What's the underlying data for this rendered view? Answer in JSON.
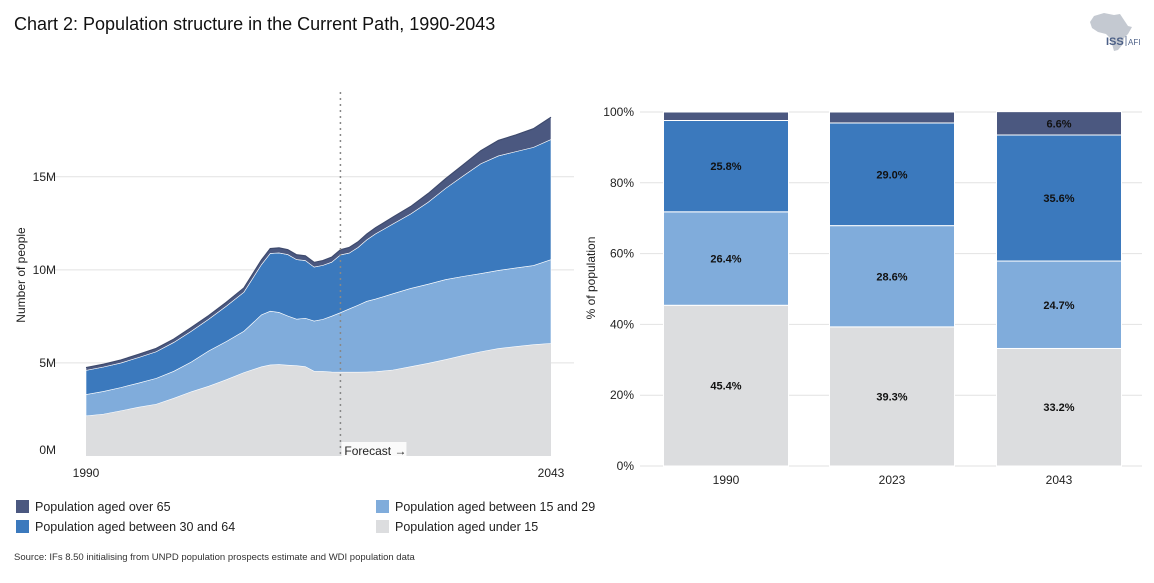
{
  "title": "Chart 2: Population structure in the Current Path, 1990-2043",
  "logo": {
    "main": "ISS",
    "sub": "AFI"
  },
  "colors": {
    "over65": "#4b5880",
    "age30to64": "#3b79bd",
    "age15to29": "#80acdb",
    "under15": "#dcdddf"
  },
  "chart_data": [
    {
      "type": "area",
      "stacked": true,
      "title": "",
      "xlabel": "",
      "ylabel": "Number of people",
      "x": [
        1990,
        1992,
        1994,
        1996,
        1998,
        2000,
        2002,
        2004,
        2006,
        2008,
        2010,
        2011,
        2012,
        2013,
        2014,
        2015,
        2016,
        2017,
        2018,
        2019,
        2020,
        2021,
        2022,
        2023,
        2025,
        2027,
        2029,
        2031,
        2033,
        2035,
        2037,
        2039,
        2041,
        2043
      ],
      "x_tick_labels": [
        "1990",
        "2043"
      ],
      "y_tick_labels": [
        "0M",
        "5M",
        "10M",
        "15M"
      ],
      "ylim": [
        0,
        19500000
      ],
      "annotation": {
        "label": "Forecast",
        "arrow": "→",
        "x": 2019
      },
      "series": [
        {
          "name": "Population aged under 15",
          "key": "under15",
          "values": [
            2150000,
            2250000,
            2430000,
            2620000,
            2780000,
            3100000,
            3450000,
            3750000,
            4100000,
            4480000,
            4790000,
            4890000,
            4910000,
            4880000,
            4850000,
            4800000,
            4550000,
            4540000,
            4510000,
            4500000,
            4500000,
            4500000,
            4510000,
            4530000,
            4620000,
            4800000,
            4980000,
            5180000,
            5400000,
            5600000,
            5770000,
            5880000,
            5980000,
            6050000
          ]
        },
        {
          "name": "Population aged between 15 and 29",
          "key": "age15to29",
          "values": [
            1150000,
            1220000,
            1250000,
            1300000,
            1390000,
            1450000,
            1600000,
            1900000,
            2050000,
            2220000,
            2790000,
            2890000,
            2800000,
            2640000,
            2500000,
            2600000,
            2700000,
            2800000,
            3000000,
            3200000,
            3400000,
            3600000,
            3800000,
            3900000,
            4100000,
            4200000,
            4250000,
            4300000,
            4250000,
            4200000,
            4200000,
            4220000,
            4250000,
            4500000
          ]
        },
        {
          "name": "Population aged between 30 and 64",
          "key": "age30to64",
          "values": [
            1300000,
            1310000,
            1320000,
            1370000,
            1430000,
            1550000,
            1650000,
            1700000,
            1900000,
            2100000,
            2700000,
            3100000,
            3200000,
            3300000,
            3200000,
            3100000,
            2900000,
            2900000,
            2900000,
            3100000,
            3000000,
            3100000,
            3300000,
            3500000,
            3750000,
            4000000,
            4400000,
            4900000,
            5400000,
            5900000,
            6150000,
            6250000,
            6350000,
            6450000
          ]
        },
        {
          "name": "Population aged over 65",
          "key": "over65",
          "values": [
            150000,
            150000,
            160000,
            170000,
            180000,
            180000,
            200000,
            200000,
            210000,
            230000,
            250000,
            260000,
            270000,
            260000,
            260000,
            250000,
            250000,
            260000,
            270000,
            280000,
            300000,
            300000,
            310000,
            330000,
            370000,
            400000,
            470000,
            520000,
            600000,
            700000,
            830000,
            900000,
            1000000,
            1200000
          ]
        }
      ]
    },
    {
      "type": "bar",
      "stacked": true,
      "title": "",
      "xlabel": "",
      "ylabel": "% of population",
      "categories": [
        "1990",
        "2023",
        "2043"
      ],
      "y_tick_labels": [
        "0%",
        "20%",
        "40%",
        "60%",
        "80%",
        "100%"
      ],
      "ylim": [
        0,
        100
      ],
      "series": [
        {
          "name": "Population aged under 15",
          "key": "under15",
          "values": [
            45.4,
            39.3,
            33.2
          ],
          "labels": [
            "45.4%",
            "39.3%",
            "33.2%"
          ]
        },
        {
          "name": "Population aged between 15 and 29",
          "key": "age15to29",
          "values": [
            26.4,
            28.6,
            24.7
          ],
          "labels": [
            "26.4%",
            "28.6%",
            "24.7%"
          ]
        },
        {
          "name": "Population aged between 30 and 64",
          "key": "age30to64",
          "values": [
            25.8,
            29.0,
            35.6
          ],
          "labels": [
            "25.8%",
            "29.0%",
            "35.6%"
          ]
        },
        {
          "name": "Population aged over 65",
          "key": "over65",
          "values": [
            2.4,
            3.1,
            6.6
          ],
          "labels": [
            "",
            "",
            "6.6%"
          ]
        }
      ]
    }
  ],
  "legend": [
    {
      "key": "over65",
      "label": "Population aged over 65"
    },
    {
      "key": "age30to64",
      "label": "Population aged between 30 and 64"
    },
    {
      "key": "age15to29",
      "label": "Population aged between 15 and 29"
    },
    {
      "key": "under15",
      "label": "Population aged under 15"
    }
  ],
  "source": "Source: IFs 8.50 initialising from UNPD population prospects estimate and WDI population data"
}
